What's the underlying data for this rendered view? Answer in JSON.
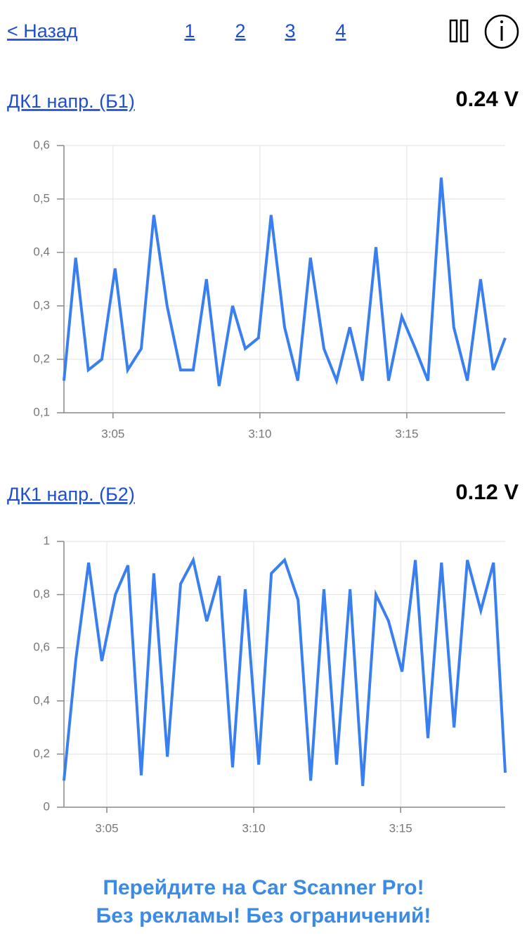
{
  "header": {
    "back": "< Назад",
    "pages": [
      "1",
      "2",
      "3",
      "4"
    ]
  },
  "chart_data": [
    {
      "type": "line",
      "title": "ДК1 напр. (Б1)",
      "reading": "0.24 V",
      "color": "#3a7ff0",
      "grid": true,
      "x": [
        3.33,
        3.73,
        4.16,
        4.62,
        5.07,
        5.5,
        5.96,
        6.39,
        6.84,
        7.3,
        7.73,
        8.18,
        8.61,
        9.07,
        9.5,
        9.95,
        10.38,
        10.84,
        11.29,
        11.72,
        12.18,
        12.61,
        13.06,
        13.49,
        13.95,
        14.38,
        14.83,
        15.29,
        15.72,
        16.17,
        16.6,
        17.06,
        17.51,
        17.94,
        18.35
      ],
      "values": [
        0.16,
        0.39,
        0.18,
        0.2,
        0.37,
        0.18,
        0.22,
        0.47,
        0.3,
        0.18,
        0.18,
        0.35,
        0.15,
        0.3,
        0.22,
        0.24,
        0.47,
        0.26,
        0.16,
        0.39,
        0.22,
        0.16,
        0.26,
        0.16,
        0.41,
        0.16,
        0.28,
        0.22,
        0.16,
        0.54,
        0.26,
        0.16,
        0.35,
        0.18,
        0.24
      ],
      "xlim": [
        3.33,
        18.35
      ],
      "xticks": [
        {
          "value": 5,
          "label": "3:05"
        },
        {
          "value": 10,
          "label": "3:10"
        },
        {
          "value": 15,
          "label": "3:15"
        }
      ],
      "ylim": [
        0.1,
        0.6
      ],
      "yticks": [
        {
          "value": 0.1,
          "label": "0,1"
        },
        {
          "value": 0.2,
          "label": "0,2"
        },
        {
          "value": 0.3,
          "label": "0,3"
        },
        {
          "value": 0.4,
          "label": "0,4"
        },
        {
          "value": 0.5,
          "label": "0,5"
        },
        {
          "value": 0.6,
          "label": "0,6"
        }
      ]
    },
    {
      "type": "line",
      "title": "ДК1 напр. (Б2)",
      "reading": "0.12 V",
      "color": "#3a7ff0",
      "grid": true,
      "x": [
        3.54,
        3.95,
        4.38,
        4.83,
        5.29,
        5.72,
        6.17,
        6.6,
        7.06,
        7.51,
        7.94,
        8.4,
        8.83,
        9.28,
        9.71,
        10.17,
        10.6,
        11.05,
        11.51,
        11.94,
        12.39,
        12.82,
        13.28,
        13.71,
        14.16,
        14.59,
        15.05,
        15.5,
        15.93,
        16.39,
        16.82,
        17.27,
        17.73,
        18.16,
        18.56
      ],
      "values": [
        0.1,
        0.56,
        0.92,
        0.55,
        0.8,
        0.91,
        0.12,
        0.88,
        0.19,
        0.84,
        0.93,
        0.7,
        0.87,
        0.15,
        0.82,
        0.16,
        0.88,
        0.93,
        0.78,
        0.1,
        0.82,
        0.16,
        0.82,
        0.08,
        0.8,
        0.7,
        0.51,
        0.93,
        0.26,
        0.92,
        0.3,
        0.93,
        0.74,
        0.92,
        0.13
      ],
      "xlim": [
        3.54,
        18.56
      ],
      "xticks": [
        {
          "value": 5,
          "label": "3:05"
        },
        {
          "value": 10,
          "label": "3:10"
        },
        {
          "value": 15,
          "label": "3:15"
        }
      ],
      "ylim": [
        0,
        1
      ],
      "yticks": [
        0,
        {
          "value": 0.2,
          "label": "0,2"
        },
        {
          "value": 0.4,
          "label": "0,4"
        },
        {
          "value": 0.6,
          "label": "0,6"
        },
        {
          "value": 0.8,
          "label": "0,8"
        },
        1
      ]
    }
  ],
  "footer": [
    "Перейдите на Car Scanner Pro!",
    "Без рекламы! Без ограничений!"
  ]
}
